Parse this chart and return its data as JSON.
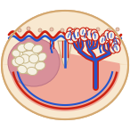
{
  "fig_bg": "#ffffff",
  "outer_ellipse_fc": "#f5dfc0",
  "outer_ellipse_ec": "#d4a870",
  "inner_space_fc": "#f0a898",
  "top_band_fc": "#f8e8d0",
  "bottom_band_fc": "#f8e8d0",
  "red": "#cc2211",
  "blue": "#2255cc",
  "left_cotyledon_fc": "#d8909a",
  "left_cotyledon_ec": "#c07888",
  "trophoblast_fc": "#f5f0e2",
  "trophoblast_ec": "#c8b888",
  "septum_fc": "#f0ddc8",
  "septum_ec": "#c8a880",
  "villous_fc": "#f5ede0",
  "dot_fc": "#e8c0b0",
  "dot_ec": "#c09878"
}
